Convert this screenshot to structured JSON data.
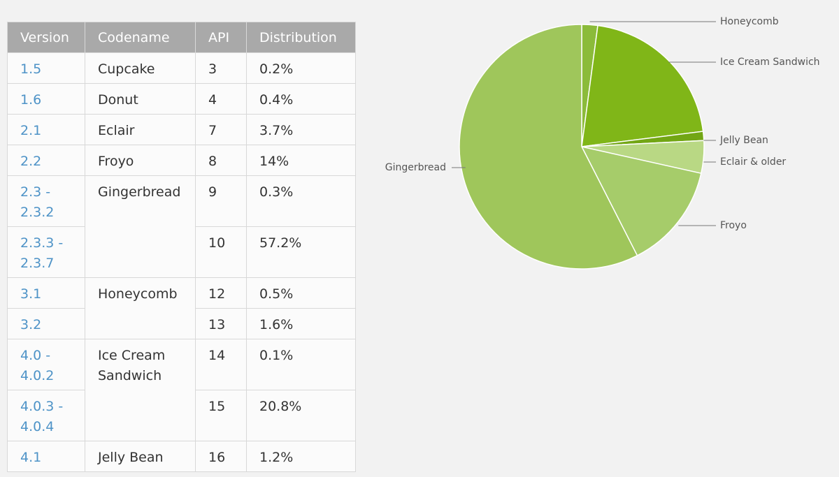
{
  "table": {
    "headers": [
      "Version",
      "Codename",
      "API",
      "Distribution"
    ],
    "rows": [
      {
        "version": "1.5",
        "codename": "Cupcake",
        "api": "3",
        "dist": "0.2%"
      },
      {
        "version": "1.6",
        "codename": "Donut",
        "api": "4",
        "dist": "0.4%"
      },
      {
        "version": "2.1",
        "codename": "Eclair",
        "api": "7",
        "dist": "3.7%"
      },
      {
        "version": "2.2",
        "codename": "Froyo",
        "api": "8",
        "dist": "14%"
      },
      {
        "version": "2.3 - 2.3.2",
        "codename": "Gingerbread",
        "api": "9",
        "dist": "0.3%"
      },
      {
        "version": "2.3.3 - 2.3.7",
        "codename": "",
        "api": "10",
        "dist": "57.2%"
      },
      {
        "version": "3.1",
        "codename": "Honeycomb",
        "api": "12",
        "dist": "0.5%"
      },
      {
        "version": "3.2",
        "codename": "",
        "api": "13",
        "dist": "1.6%"
      },
      {
        "version": "4.0 - 4.0.2",
        "codename": "Ice Cream Sandwich",
        "api": "14",
        "dist": "0.1%"
      },
      {
        "version": "4.0.3 - 4.0.4",
        "codename": "",
        "api": "15",
        "dist": "20.8%"
      },
      {
        "version": "4.1",
        "codename": "Jelly Bean",
        "api": "16",
        "dist": "1.2%"
      }
    ]
  },
  "chart_data": {
    "type": "pie",
    "start_angle_deg": -90,
    "direction": "clockwise",
    "slices": [
      {
        "label": "Honeycomb",
        "value": 2.1,
        "color": "#8bbb3a"
      },
      {
        "label": "Ice Cream Sandwich",
        "value": 20.9,
        "color": "#80b618"
      },
      {
        "label": "Jelly Bean",
        "value": 1.2,
        "color": "#72a614"
      },
      {
        "label": "Eclair & older",
        "value": 4.3,
        "color": "#b9d884"
      },
      {
        "label": "Froyo",
        "value": 14,
        "color": "#a6cc6a"
      },
      {
        "label": "Gingerbread",
        "value": 57.5,
        "color": "#9fc65b"
      }
    ],
    "legend": "labels beside slices"
  }
}
